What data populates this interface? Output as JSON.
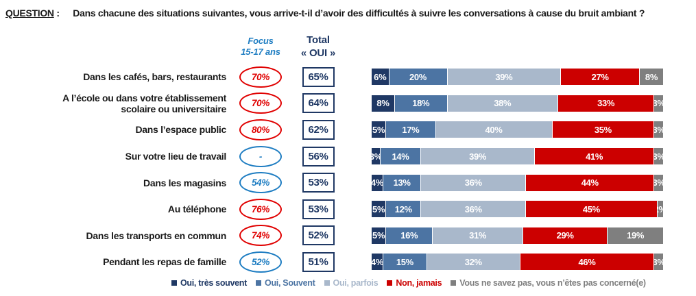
{
  "question": {
    "label": "QUESTION",
    "colon": ":",
    "text": "Dans chacune des situations suivantes, vous arrive-t-il d’avoir des difficultés à suivre les conversations à cause du bruit ambiant ?"
  },
  "columns": {
    "focus_header": "Focus\n15-17 ans",
    "total_header": "Total\n« OUI »"
  },
  "colors": {
    "navy": "#1F3864",
    "mid_blue": "#4C74A3",
    "light_blue": "#A9B8CB",
    "red": "#CC0000",
    "gray": "#7F7F7F",
    "focus_blue": "#1E7DC2",
    "focus_red": "#E00000",
    "text": "#1a1a1a"
  },
  "chart_data": {
    "type": "bar",
    "orientation": "horizontal",
    "stacked": true,
    "unit": "%",
    "xlim": [
      0,
      100
    ],
    "legend_position": "bottom",
    "categories": [
      "Dans les cafés, bars, restaurants",
      "A l’école ou dans votre établissement\nscolaire ou universitaire",
      "Dans l’espace public",
      "Sur votre lieu de travail",
      "Dans les magasins",
      "Au téléphone",
      "Dans les transports en commun",
      "Pendant les repas de famille"
    ],
    "focus_15_17_ans": [
      {
        "value": "70%",
        "style": "red"
      },
      {
        "value": "70%",
        "style": "red"
      },
      {
        "value": "80%",
        "style": "red"
      },
      {
        "value": "-",
        "style": "blue"
      },
      {
        "value": "54%",
        "style": "blue"
      },
      {
        "value": "76%",
        "style": "red"
      },
      {
        "value": "74%",
        "style": "red"
      },
      {
        "value": "52%",
        "style": "blue"
      }
    ],
    "total_oui": [
      "65%",
      "64%",
      "62%",
      "56%",
      "53%",
      "53%",
      "52%",
      "51%"
    ],
    "series": [
      {
        "name": "Oui, très souvent",
        "color": "#1F3864",
        "values": [
          6,
          8,
          5,
          3,
          4,
          5,
          5,
          4
        ]
      },
      {
        "name": "Oui, Souvent",
        "color": "#4C74A3",
        "values": [
          20,
          18,
          17,
          14,
          13,
          12,
          16,
          15
        ]
      },
      {
        "name": "Oui, parfois",
        "color": "#A9B8CB",
        "values": [
          39,
          38,
          40,
          39,
          36,
          36,
          31,
          32
        ]
      },
      {
        "name": "Non, jamais",
        "color": "#CC0000",
        "values": [
          27,
          33,
          35,
          41,
          44,
          45,
          29,
          46
        ]
      },
      {
        "name": "Vous ne savez pas, vous n’êtes pas concerné(e)",
        "color": "#7F7F7F",
        "values": [
          8,
          3,
          3,
          3,
          3,
          2,
          19,
          3
        ]
      }
    ]
  }
}
